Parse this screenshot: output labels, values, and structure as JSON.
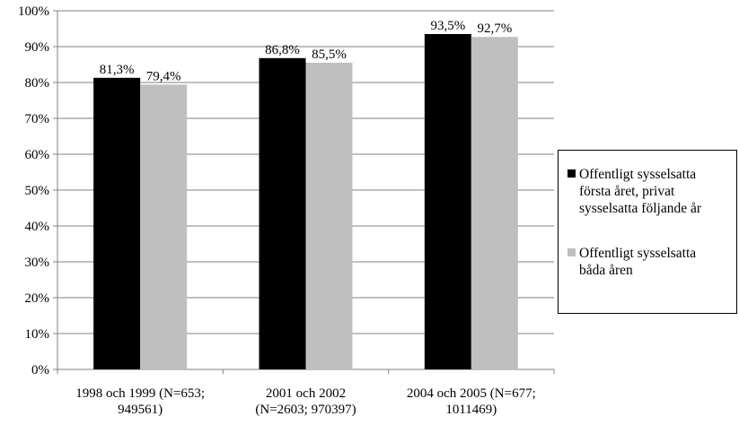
{
  "chart_data": {
    "type": "bar",
    "categories": [
      [
        "1998 och 1999 (N=653;",
        "949561)"
      ],
      [
        "2001 och 2002",
        "(N=2603; 970397)"
      ],
      [
        "2004 och 2005 (N=677;",
        "1011469)"
      ]
    ],
    "series": [
      {
        "name": "Offentligt sysselsatta första året, privat sysselsatta följande år",
        "name_lines": [
          "Offentligt sysselsatta",
          "första året, privat",
          "sysselsatta följande år"
        ],
        "color": "#000000",
        "values": [
          81.3,
          86.8,
          93.5
        ],
        "labels": [
          "81,3%",
          "86,8%",
          "93,5%"
        ]
      },
      {
        "name": "Offentligt sysselsatta båda åren",
        "name_lines": [
          "Offentligt sysselsatta",
          "båda åren"
        ],
        "color": "#bfbfbf",
        "values": [
          79.4,
          85.5,
          92.7
        ],
        "labels": [
          "79,4%",
          "85,5%",
          "92,7%"
        ]
      }
    ],
    "ylim": [
      0,
      100
    ],
    "yticks": [
      "0%",
      "10%",
      "20%",
      "30%",
      "40%",
      "50%",
      "60%",
      "70%",
      "80%",
      "90%",
      "100%"
    ],
    "grid": true,
    "legend": "right"
  }
}
